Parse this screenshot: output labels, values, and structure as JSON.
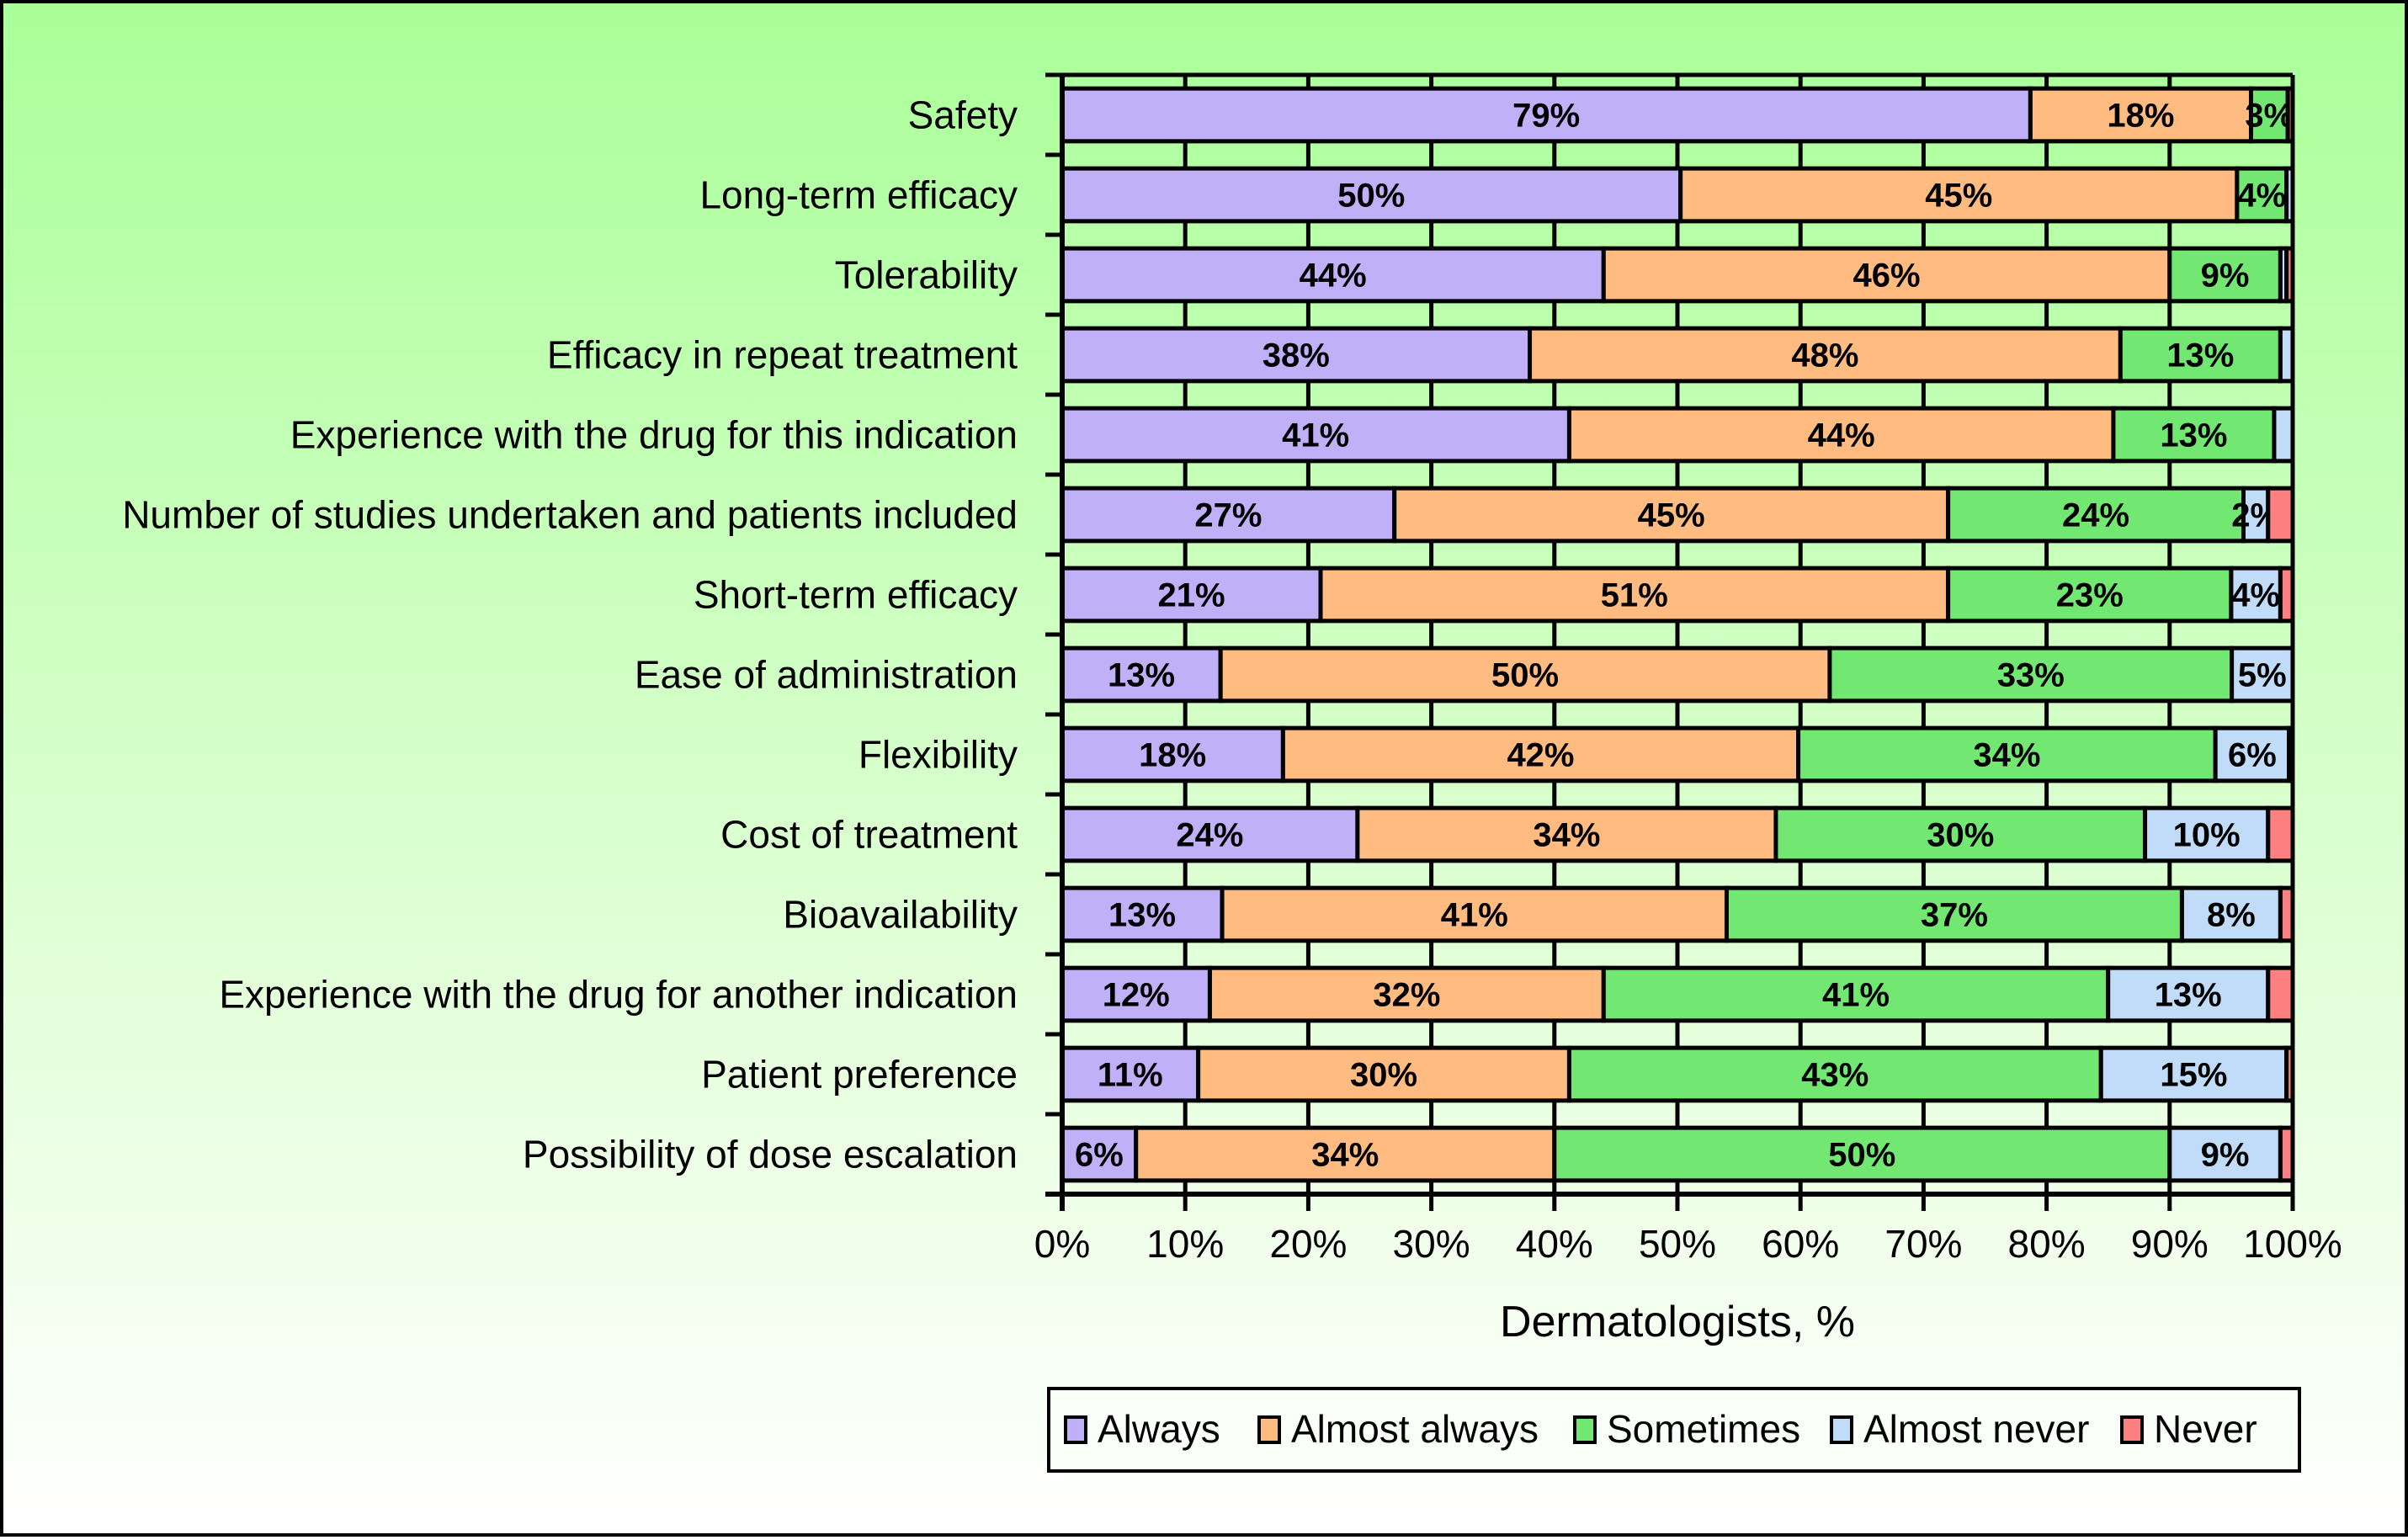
{
  "chart_data": {
    "type": "bar",
    "orientation": "horizontal",
    "stacked": true,
    "title": "",
    "xlabel": "Dermatologists, %",
    "ylabel": "",
    "xlim": [
      0,
      100
    ],
    "x_ticks": [
      "0%",
      "10%",
      "20%",
      "30%",
      "40%",
      "50%",
      "60%",
      "70%",
      "80%",
      "90%",
      "100%"
    ],
    "grid": "vertical",
    "legend_position": "bottom",
    "categories": [
      "Safety",
      "Long-term efficacy",
      "Tolerability",
      "Efficacy in repeat treatment",
      "Experience with the drug for this indication",
      "Number of studies undertaken and patients included",
      "Short-term efficacy",
      "Ease of administration",
      "Flexibility",
      "Cost of treatment",
      "Bioavailability",
      "Experience with the drug for another indication",
      "Patient preference",
      "Possibility of dose escalation"
    ],
    "series": [
      {
        "name": "Always",
        "color": "#c0b0f8",
        "values": [
          79,
          50,
          44,
          38,
          41,
          27,
          21,
          13,
          18,
          24,
          13,
          12,
          11,
          6
        ],
        "labels": [
          "79%",
          "50%",
          "44%",
          "38%",
          "41%",
          "27%",
          "21%",
          "13%",
          "18%",
          "24%",
          "13%",
          "12%",
          "11%",
          "6%"
        ]
      },
      {
        "name": "Almost always",
        "color": "#ffbb80",
        "values": [
          18,
          45,
          46,
          48,
          44,
          45,
          51,
          50,
          42,
          34,
          41,
          32,
          30,
          34
        ],
        "labels": [
          "18%",
          "45%",
          "46%",
          "48%",
          "44%",
          "45%",
          "51%",
          "50%",
          "42%",
          "34%",
          "41%",
          "32%",
          "30%",
          "34%"
        ]
      },
      {
        "name": "Sometimes",
        "color": "#72e872",
        "values": [
          3,
          4,
          9,
          13,
          13,
          24,
          23,
          33,
          34,
          30,
          37,
          41,
          43,
          50
        ],
        "labels": [
          "3%",
          "4%",
          "9%",
          "13%",
          "13%",
          "24%",
          "23%",
          "33%",
          "34%",
          "30%",
          "37%",
          "41%",
          "43%",
          "50%"
        ]
      },
      {
        "name": "Almost never",
        "color": "#c0dcf8",
        "values": [
          0,
          0.5,
          0.5,
          1,
          1.5,
          2,
          4,
          5,
          6,
          10,
          8,
          13,
          15,
          9
        ],
        "labels": [
          "",
          "",
          "",
          "",
          "",
          "2%",
          "4%",
          "5%",
          "6%",
          "10%",
          "8%",
          "13%",
          "15%",
          "9%"
        ]
      },
      {
        "name": "Never",
        "color": "#ff8080",
        "values": [
          0.4,
          0,
          0.5,
          0,
          0,
          2,
          1,
          0,
          0.3,
          2,
          1,
          2,
          0.5,
          1
        ],
        "labels": [
          "",
          "",
          "",
          "",
          "",
          "",
          "",
          "",
          "",
          "",
          "",
          "",
          "",
          ""
        ]
      }
    ]
  }
}
